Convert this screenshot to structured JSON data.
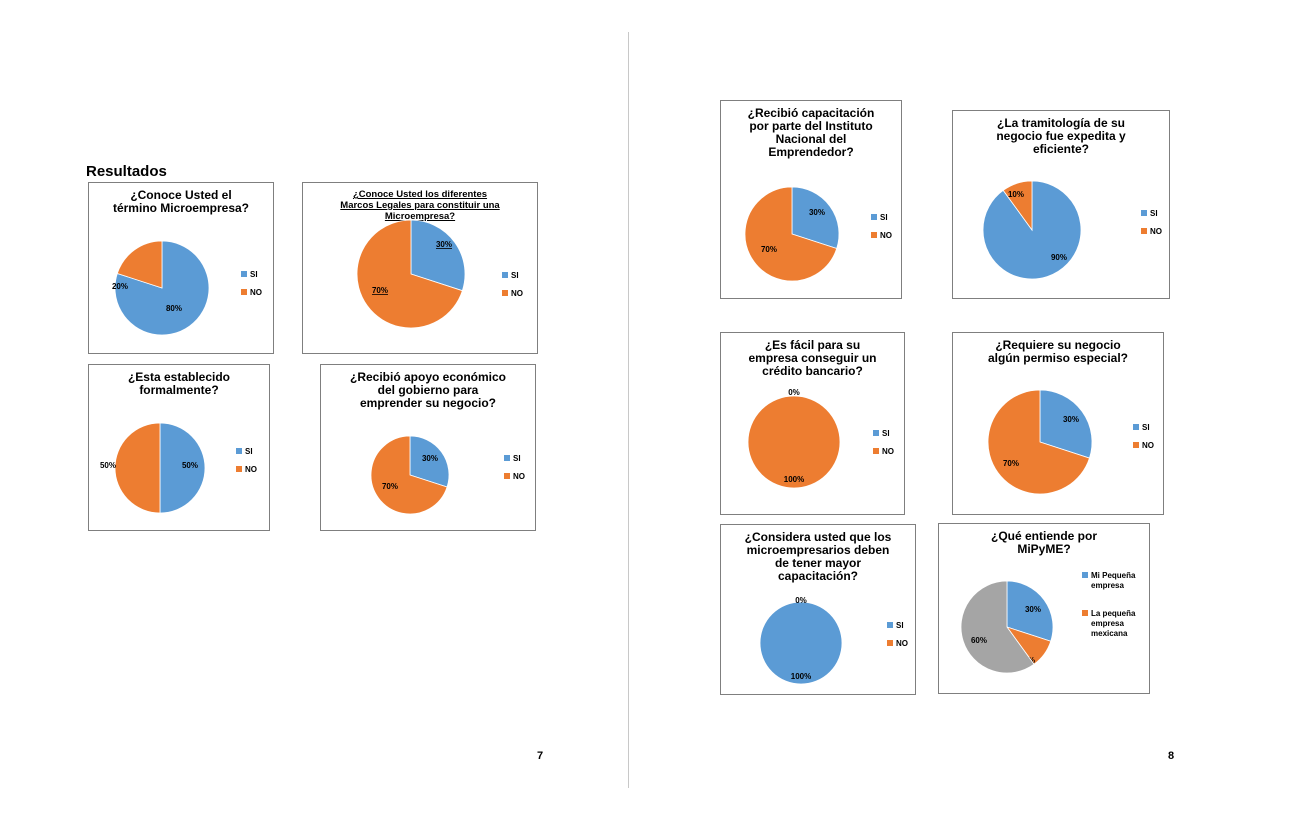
{
  "section_title": "Resultados",
  "pages": {
    "left": "7",
    "right": "8"
  },
  "colors": {
    "blue": "#5b9bd5",
    "orange": "#ed7d31",
    "gray": "#a5a5a5"
  },
  "chart_data": [
    {
      "type": "pie",
      "title": "¿Conoce Usted el\ntérmino Microempresa?",
      "categories": [
        "SI",
        "NO"
      ],
      "values": [
        80,
        20
      ],
      "labels": [
        "80%",
        "20%"
      ],
      "legend": [
        "SI",
        "NO"
      ]
    },
    {
      "type": "pie",
      "title": "¿Conoce Usted los diferentes\nMarcos Legales para constituir una\nMicroempresa?",
      "categories": [
        "SI",
        "NO"
      ],
      "values": [
        30,
        70
      ],
      "labels": [
        "30%",
        "70%"
      ],
      "legend": [
        "SI",
        "NO"
      ]
    },
    {
      "type": "pie",
      "title": "¿Esta establecido\nformalmente?",
      "categories": [
        "SI",
        "NO"
      ],
      "values": [
        50,
        50
      ],
      "labels": [
        "50%",
        "50%"
      ],
      "legend": [
        "SI",
        "NO"
      ]
    },
    {
      "type": "pie",
      "title": "¿Recibió apoyo económico\ndel gobierno para\nemprender su negocio?",
      "categories": [
        "SI",
        "NO"
      ],
      "values": [
        30,
        70
      ],
      "labels": [
        "30%",
        "70%"
      ],
      "legend": [
        "SI",
        "NO"
      ]
    },
    {
      "type": "pie",
      "title": "¿Recibió capacitación\npor parte del Instituto\nNacional del\nEmprendedor?",
      "categories": [
        "SI",
        "NO"
      ],
      "values": [
        30,
        70
      ],
      "labels": [
        "30%",
        "70%"
      ],
      "legend": [
        "SI",
        "NO"
      ]
    },
    {
      "type": "pie",
      "title": "¿La tramitología de su\nnegocio fue expedita y\neficiente?",
      "categories": [
        "SI",
        "NO"
      ],
      "values": [
        90,
        10
      ],
      "labels": [
        "90%",
        "10%"
      ],
      "legend": [
        "SI",
        "NO"
      ]
    },
    {
      "type": "pie",
      "title": "¿Es fácil para su\nempresa conseguir un\ncrédito bancario?",
      "categories": [
        "SI",
        "NO"
      ],
      "values": [
        0,
        100
      ],
      "labels": [
        "0%",
        "100%"
      ],
      "legend": [
        "SI",
        "NO"
      ]
    },
    {
      "type": "pie",
      "title": "¿Requiere su negocio\nalgún permiso especial?",
      "categories": [
        "SI",
        "NO"
      ],
      "values": [
        30,
        70
      ],
      "labels": [
        "30%",
        "70%"
      ],
      "legend": [
        "SI",
        "NO"
      ]
    },
    {
      "type": "pie",
      "title": "¿Considera usted que los\nmicroempresarios deben\nde tener mayor\ncapacitación?",
      "categories": [
        "SI",
        "NO"
      ],
      "values": [
        100,
        0
      ],
      "labels": [
        "100%",
        "0%"
      ],
      "legend": [
        "SI",
        "NO"
      ]
    },
    {
      "type": "pie",
      "title": "¿Qué entiende por\nMiPyME?",
      "categories": [
        "Mi Pequeña empresa",
        "La pequeña empresa mexicana",
        ""
      ],
      "values": [
        30,
        10,
        60
      ],
      "labels": [
        "30%",
        "10%",
        "60%"
      ],
      "legend": [
        "Mi Pequeña\nempresa",
        "La pequeña\nempresa\nmexicana"
      ]
    }
  ]
}
